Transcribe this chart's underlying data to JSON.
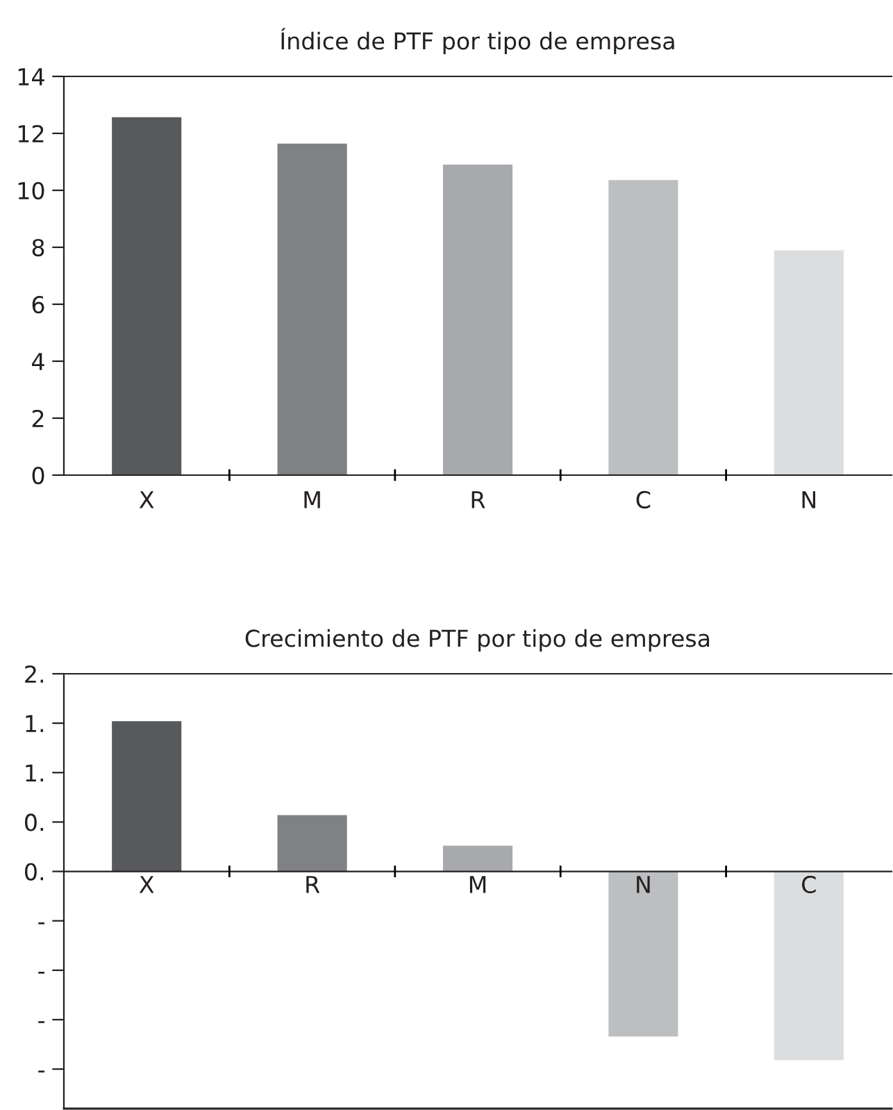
{
  "chart_data": [
    {
      "type": "bar",
      "title": "Índice de PTF por tipo de empresa",
      "categories": [
        "X",
        "M",
        "R",
        "C",
        "N"
      ],
      "values": [
        12.57,
        11.64,
        10.9,
        10.36,
        7.89
      ],
      "colors": [
        "#58595b",
        "#808184",
        "#a7a9ac",
        "#bcbec0",
        "#dcdddf"
      ],
      "ylim": [
        0,
        14
      ],
      "yticks": [
        0,
        2,
        4,
        6,
        8,
        10,
        12,
        14
      ],
      "grid": false
    },
    {
      "type": "bar",
      "title": "Crecimiento de PTF por tipo de empresa",
      "categories": [
        "X",
        "R",
        "M",
        "N",
        "C"
      ],
      "values": [
        1.52,
        0.57,
        0.26,
        -1.67,
        -1.91
      ],
      "colors": [
        "#58595b",
        "#808184",
        "#a7a9ac",
        "#bcbec0",
        "#dcdddf"
      ],
      "ylim": [
        -2.4,
        2.0
      ],
      "yticks": [
        {
          "value": 2.0,
          "label": "2."
        },
        {
          "value": 1.5,
          "label": "1."
        },
        {
          "value": 1.0,
          "label": "1."
        },
        {
          "value": 0.5,
          "label": "0."
        },
        {
          "value": 0,
          "label": "0."
        },
        {
          "value": -0.5,
          "label": "-"
        },
        {
          "value": -1.0,
          "label": "-"
        },
        {
          "value": -1.5,
          "label": "-"
        },
        {
          "value": -2.0,
          "label": "-"
        }
      ],
      "grid": false
    }
  ]
}
